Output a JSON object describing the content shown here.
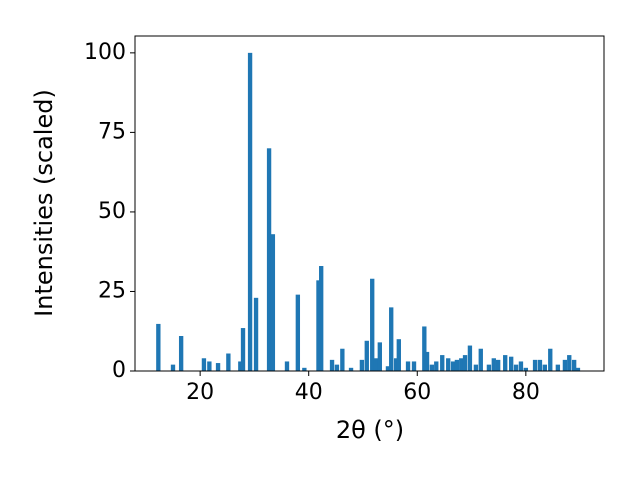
{
  "chart_data": {
    "type": "bar",
    "xlabel": "2θ (°)",
    "ylabel": "Intensities (scaled)",
    "color": "#1f77b4",
    "x": [
      12.3,
      15.0,
      16.5,
      20.7,
      21.7,
      23.3,
      25.2,
      27.4,
      27.9,
      29.2,
      30.3,
      32.7,
      33.4,
      36.0,
      38.0,
      39.2,
      41.8,
      42.3,
      44.3,
      45.2,
      46.2,
      47.8,
      49.8,
      50.7,
      51.7,
      52.4,
      53.1,
      54.6,
      55.2,
      56.1,
      56.6,
      58.3,
      59.4,
      61.3,
      61.8,
      62.7,
      63.5,
      64.6,
      65.7,
      66.6,
      67.3,
      68.1,
      68.8,
      69.7,
      70.8,
      71.7,
      73.2,
      74.1,
      74.9,
      76.2,
      77.3,
      78.2,
      79.1,
      80.0,
      81.7,
      82.6,
      83.5,
      84.5,
      85.9,
      87.2,
      88.0,
      88.9,
      89.6
    ],
    "values": [
      14.8,
      2,
      11,
      4,
      3,
      2.5,
      5.5,
      3,
      13.5,
      100,
      23,
      70,
      43,
      3,
      24,
      1,
      28.5,
      33,
      3.5,
      2,
      7,
      1,
      3.5,
      9.5,
      29,
      4,
      9,
      1.5,
      20,
      4,
      10,
      3,
      3,
      14,
      6,
      2,
      3,
      5,
      4,
      3,
      3.5,
      4,
      5,
      8,
      2,
      7,
      2,
      4,
      3.5,
      5,
      4.5,
      2,
      3,
      1,
      3.5,
      3.5,
      2,
      7,
      2,
      3.5,
      5,
      3.5,
      1
    ],
    "xlim": [
      8,
      94.4
    ],
    "xticks": [
      20,
      40,
      60,
      80
    ],
    "ylim": [
      0,
      105.3
    ],
    "yticks": [
      0,
      25,
      50,
      75,
      100
    ]
  }
}
